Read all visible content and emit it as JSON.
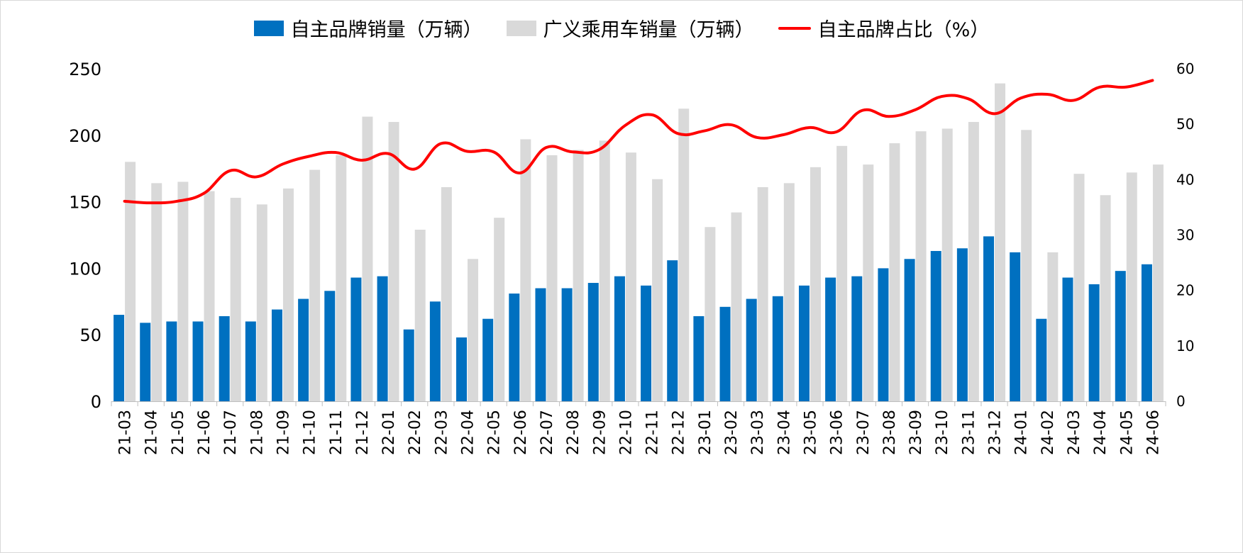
{
  "chart_data": {
    "type": "bar",
    "categories": [
      "21-03",
      "21-04",
      "21-05",
      "21-06",
      "21-07",
      "21-08",
      "21-09",
      "21-10",
      "21-11",
      "21-12",
      "22-01",
      "22-02",
      "22-03",
      "22-04",
      "22-05",
      "22-06",
      "22-07",
      "22-08",
      "22-09",
      "22-10",
      "22-11",
      "22-12",
      "23-01",
      "23-02",
      "23-03",
      "23-04",
      "23-05",
      "23-06",
      "23-07",
      "23-08",
      "23-09",
      "23-10",
      "23-11",
      "23-12",
      "24-01",
      "24-02",
      "24-03",
      "24-04",
      "24-05",
      "24-06"
    ],
    "series": [
      {
        "name": "自主品牌销量（万辆）",
        "kind": "bar",
        "axis": "left",
        "color": "#0070C0",
        "values": [
          65,
          59,
          60,
          60,
          64,
          60,
          69,
          77,
          83,
          93,
          94,
          54,
          75,
          48,
          62,
          81,
          85,
          85,
          89,
          94,
          87,
          106,
          64,
          71,
          77,
          79,
          87,
          93,
          94,
          100,
          107,
          113,
          115,
          124,
          112,
          62,
          93,
          88,
          98,
          103
        ]
      },
      {
        "name": "广义乘用车销量（万辆）",
        "kind": "bar",
        "axis": "left",
        "color": "#D9D9D9",
        "values": [
          180,
          164,
          165,
          158,
          153,
          148,
          160,
          174,
          185,
          214,
          210,
          129,
          161,
          107,
          138,
          197,
          185,
          189,
          196,
          187,
          167,
          220,
          131,
          142,
          161,
          164,
          176,
          192,
          178,
          194,
          203,
          205,
          210,
          239,
          204,
          112,
          171,
          155,
          172,
          178
        ]
      },
      {
        "name": "自主品牌占比（%）",
        "kind": "line",
        "axis": "right",
        "color": "#FF0000",
        "values": [
          36.1,
          35.8,
          36.1,
          37.5,
          41.6,
          40.5,
          42.8,
          44.2,
          44.9,
          43.5,
          44.7,
          41.9,
          46.5,
          45.1,
          45.0,
          41.2,
          45.8,
          45.0,
          45.4,
          49.8,
          51.7,
          48.3,
          48.8,
          49.9,
          47.6,
          48.1,
          49.4,
          48.6,
          52.5,
          51.4,
          52.6,
          55.0,
          54.6,
          51.9,
          54.7,
          55.4,
          54.3,
          56.7,
          56.7,
          57.9
        ]
      }
    ],
    "y_left": {
      "min": 0,
      "max": 250,
      "ticks": [
        "0",
        "50",
        "100",
        "150",
        "200",
        "250"
      ]
    },
    "y_right": {
      "min": 0,
      "max": 60,
      "ticks": [
        "0",
        "10",
        "20",
        "30",
        "40",
        "50",
        "60"
      ]
    },
    "legend_position": "top",
    "grid": false
  },
  "legend": [
    {
      "label": "自主品牌销量（万辆）",
      "type": "box",
      "color": "#0070C0"
    },
    {
      "label": "广义乘用车销量（万辆）",
      "type": "box",
      "color": "#D9D9D9"
    },
    {
      "label": "自主品牌占比（%）",
      "type": "line",
      "color": "#FF0000"
    }
  ]
}
